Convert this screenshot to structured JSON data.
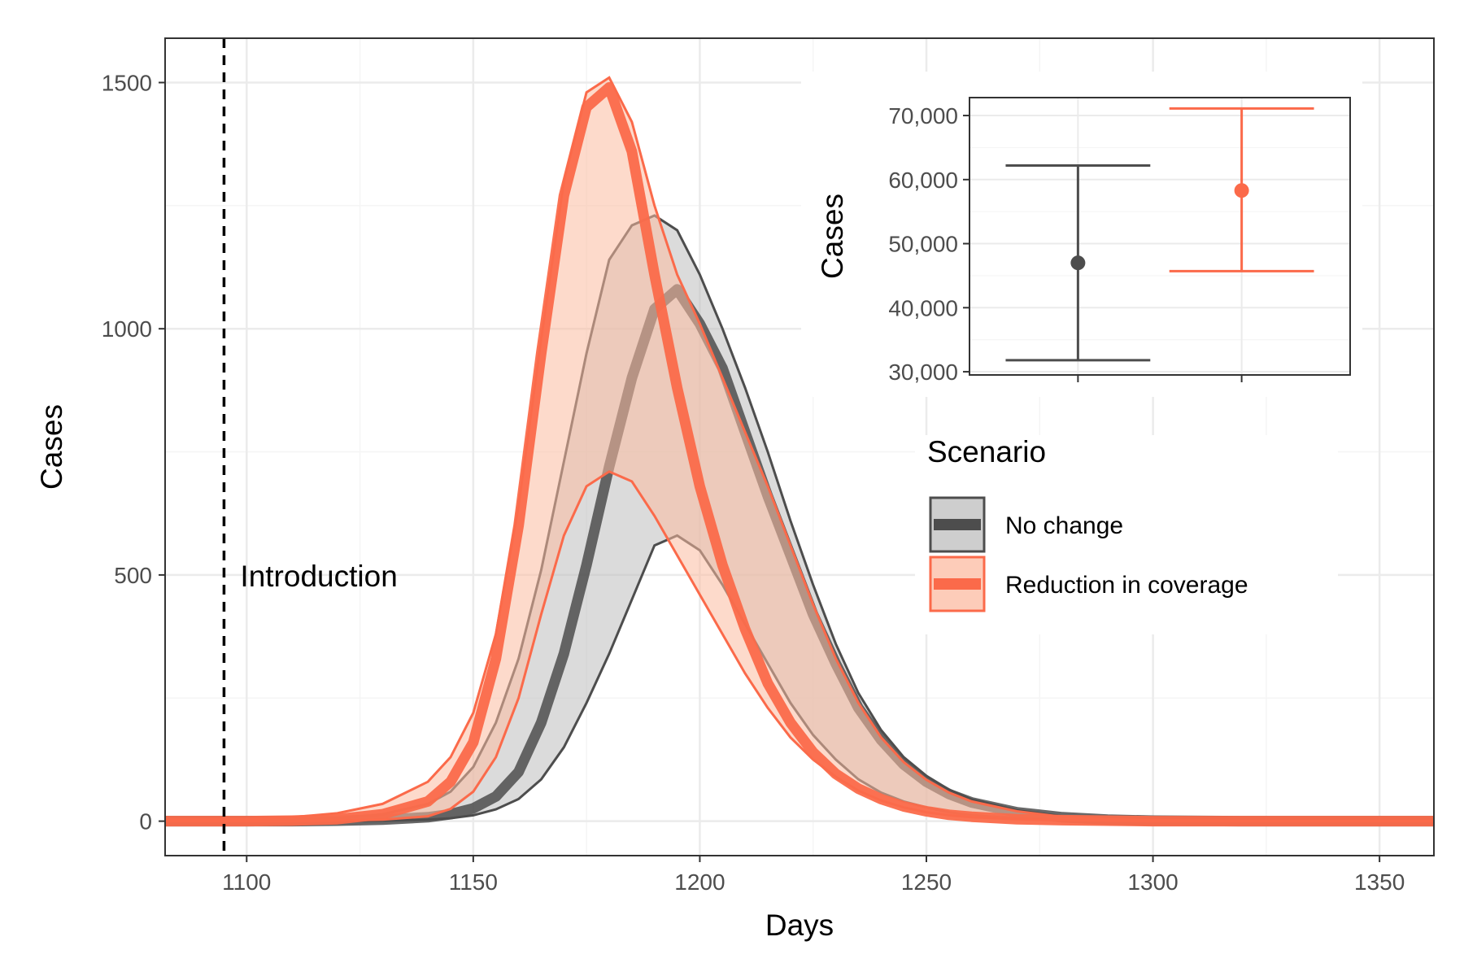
{
  "colors": {
    "no_change": "#4d4d4d",
    "no_change_fill": "#bdbdbd",
    "reduction": "#fb6a4a",
    "reduction_fill": "#fcbba1",
    "grid_major": "#ebebeb",
    "grid_minor": "#f5f5f5",
    "panel_border": "#333333",
    "text": "#4d4d4d"
  },
  "chart_data": [
    {
      "type": "area",
      "xlabel": "Days",
      "ylabel": "Cases",
      "xlim": [
        1082,
        1362
      ],
      "ylim": [
        -70,
        1590
      ],
      "xticks": [
        1100,
        1150,
        1200,
        1250,
        1300,
        1350
      ],
      "yticks": [
        0,
        500,
        1000,
        1500
      ],
      "grid": true,
      "annotations": [
        {
          "text": "Introduction",
          "x": 1095,
          "type": "vline",
          "style": "dashed"
        }
      ],
      "legend": {
        "title": "Scenario",
        "position": "right",
        "entries": [
          "No change",
          "Reduction in coverage"
        ]
      },
      "series": [
        {
          "name": "No change",
          "color_key": "no_change",
          "ribbon_points": {
            "x": [
              1082,
              1100,
              1110,
              1120,
              1130,
              1140,
              1145,
              1150,
              1155,
              1160,
              1165,
              1170,
              1175,
              1180,
              1185,
              1190,
              1195,
              1200,
              1205,
              1210,
              1215,
              1220,
              1225,
              1230,
              1235,
              1240,
              1245,
              1250,
              1255,
              1260,
              1270,
              1280,
              1290,
              1300,
              1320,
              1362
            ],
            "lower": [
              0,
              0,
              0,
              0,
              1,
              3,
              6,
              12,
              24,
              45,
              85,
              150,
              240,
              340,
              450,
              560,
              580,
              550,
              480,
              400,
              320,
              240,
              175,
              125,
              85,
              58,
              40,
              28,
              18,
              12,
              6,
              3,
              1,
              0,
              0,
              0
            ],
            "median": [
              0,
              0,
              0,
              1,
              3,
              8,
              14,
              26,
              50,
              100,
              200,
              340,
              520,
              720,
              900,
              1040,
              1080,
              1010,
              920,
              790,
              660,
              540,
              420,
              320,
              230,
              165,
              115,
              80,
              55,
              38,
              18,
              8,
              3,
              1,
              0,
              0
            ],
            "upper": [
              2,
              2,
              3,
              6,
              14,
              35,
              60,
              110,
              200,
              330,
              510,
              730,
              950,
              1140,
              1210,
              1230,
              1200,
              1110,
              1000,
              880,
              750,
              610,
              480,
              360,
              260,
              185,
              130,
              92,
              64,
              44,
              22,
              10,
              4,
              2,
              0,
              0
            ]
          }
        },
        {
          "name": "Reduction in coverage",
          "color_key": "reduction",
          "ribbon_points": {
            "x": [
              1082,
              1100,
              1110,
              1120,
              1130,
              1140,
              1145,
              1150,
              1155,
              1160,
              1165,
              1170,
              1175,
              1180,
              1185,
              1190,
              1195,
              1200,
              1205,
              1210,
              1215,
              1220,
              1225,
              1230,
              1235,
              1240,
              1245,
              1250,
              1255,
              1260,
              1270,
              1280,
              1290,
              1300,
              1320,
              1362
            ],
            "lower": [
              0,
              0,
              0,
              1,
              3,
              10,
              25,
              60,
              130,
              250,
              420,
              580,
              680,
              710,
              690,
              620,
              540,
              460,
              380,
              300,
              230,
              170,
              125,
              90,
              62,
              42,
              28,
              18,
              12,
              8,
              4,
              2,
              1,
              0,
              0,
              0
            ],
            "median": [
              0,
              0,
              1,
              4,
              14,
              40,
              80,
              160,
              330,
              600,
              950,
              1270,
              1450,
              1490,
              1360,
              1110,
              880,
              680,
              520,
              390,
              280,
              200,
              140,
              96,
              66,
              45,
              30,
              20,
              13,
              9,
              4,
              2,
              1,
              0,
              0,
              0
            ],
            "upper": [
              3,
              4,
              8,
              16,
              35,
              80,
              130,
              220,
              380,
              640,
              980,
              1300,
              1480,
              1510,
              1420,
              1250,
              1110,
              1010,
              900,
              790,
              680,
              560,
              440,
              330,
              240,
              170,
              120,
              84,
              58,
              40,
              20,
              9,
              4,
              2,
              0,
              0
            ]
          }
        }
      ]
    },
    {
      "type": "scatter",
      "subtype": "errorbar",
      "ylabel": "Cases",
      "xlabel": "",
      "ylim": [
        29500,
        72800
      ],
      "yticks": [
        30000,
        40000,
        50000,
        60000,
        70000
      ],
      "ytick_labels": [
        "30,000",
        "40,000",
        "50,000",
        "60,000",
        "70,000"
      ],
      "categories": [
        "No change",
        "Reduction in coverage"
      ],
      "series": [
        {
          "name": "No change",
          "color_key": "no_change",
          "point": 47000,
          "lower": 31800,
          "upper": 62200
        },
        {
          "name": "Reduction in coverage",
          "color_key": "reduction",
          "point": 58300,
          "lower": 45700,
          "upper": 71100
        }
      ]
    }
  ]
}
